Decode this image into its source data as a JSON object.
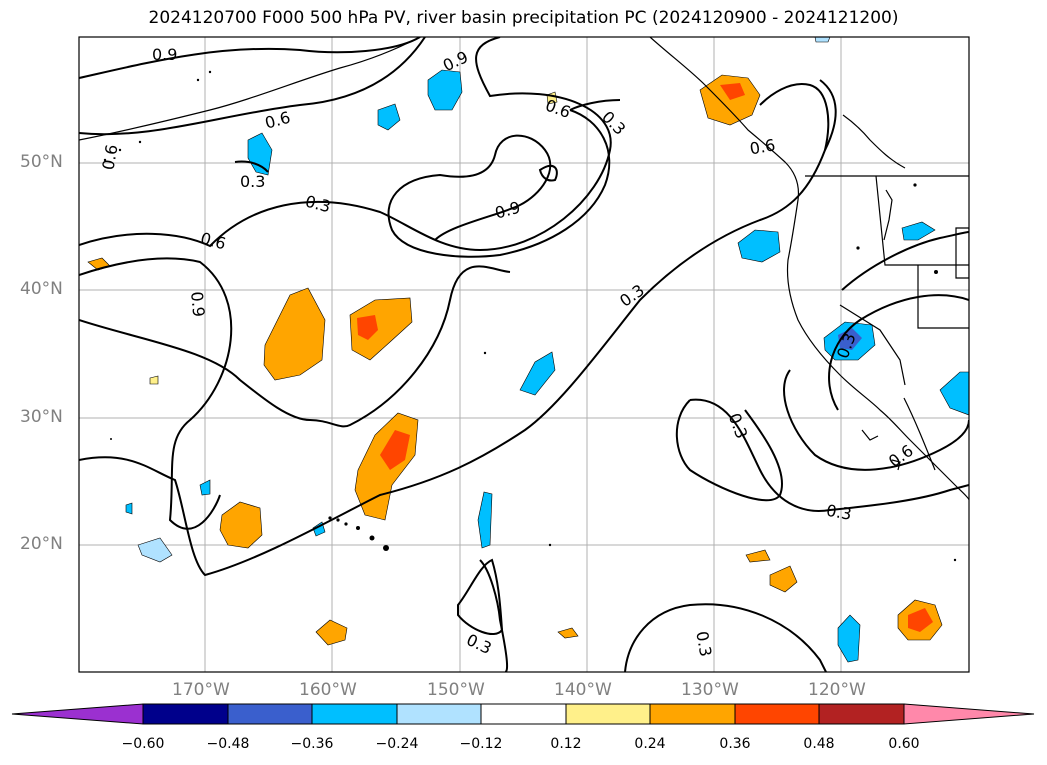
{
  "title": "2024120700 F000 500 hPa PV, river basin precipitation PC (2024120900 - 2024121200)",
  "axes": {
    "lat_labels": [
      "50°N",
      "40°N",
      "30°N",
      "20°N"
    ],
    "lon_labels": [
      "170°W",
      "160°W",
      "150°W",
      "140°W",
      "130°W",
      "120°W"
    ]
  },
  "colorbar": {
    "colors": [
      "#9b30d0",
      "#00008b",
      "#3a5fcd",
      "#00bfff",
      "#b0e2ff",
      "#ffffff",
      "#fff08a",
      "#ffa500",
      "#ff4500",
      "#b22222",
      "#ff88aa"
    ],
    "tick_labels": [
      "−0.60",
      "−0.48",
      "−0.36",
      "−0.24",
      "−0.12",
      "0.12",
      "0.24",
      "0.36",
      "0.48",
      "0.60"
    ]
  },
  "contour_labels": {
    "c1": "0.9",
    "c2": "0.9",
    "c3": "0.6",
    "c4": "0.3",
    "c5": "0.6",
    "c6": "0.6",
    "c7": "0.3",
    "c8": "0.9",
    "c9": "0.6",
    "c10": "0.3",
    "c11": "0.6",
    "c12": "0.9",
    "c13": "0.3",
    "c14": "0.3",
    "c15": "0.3",
    "c16": "0.3",
    "c17": "0.3",
    "c18": "0.6",
    "c19": "0.3"
  }
}
